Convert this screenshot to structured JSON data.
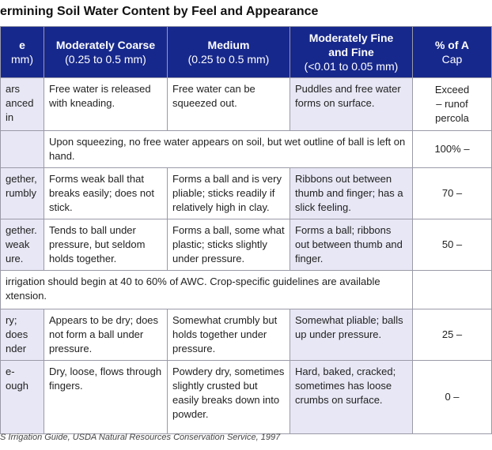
{
  "title": "ermining Soil Water Content by Feel and Appearance",
  "table": {
    "header": [
      {
        "name": "e",
        "range": "mm)"
      },
      {
        "name": "Moderately Coarse",
        "range": "(0.25 to 0.5 mm)"
      },
      {
        "name": "Medium",
        "range": "(0.25 to 0.5 mm)"
      },
      {
        "name": "Moderately Fine\nand Fine",
        "range": "(<0.01 to 0.05 mm)"
      },
      {
        "name": "% of A",
        "range": "Cap"
      }
    ],
    "rows": [
      [
        "ars\nanced in",
        "Free water is released with kneading.",
        "Free water can be squeezed out.",
        "Puddles and free water forms on surface.",
        "Exceed\n– runof\npercola"
      ],
      [
        "Upon squeezing, no free water appears on soil, but wet outline of ball is left on hand.",
        "100% –"
      ],
      [
        "gether,\nrumbly",
        "Forms weak ball that breaks easily; does not stick.",
        "Forms a ball and is very pliable; sticks readily if relatively high in clay.",
        "Ribbons out between thumb and finger; has a slick feeling.",
        "70 –"
      ],
      [
        "gether.\nweak\nure.",
        "Tends to ball under pressure, but seldom holds together.",
        "Forms a ball, some what plastic; sticks slightly under pressure.",
        "Forms a ball; ribbons out between thumb and finger.",
        "50 –"
      ],
      [
        "irrigation should begin at 40 to 60% of AWC. Crop-specific guidelines are available\nxtension."
      ],
      [
        "ry; does\nnder",
        "Appears to be dry; does not form a ball under pressure.",
        "Somewhat crumbly but holds together under pressure.",
        "Somewhat pliable; balls up under pressure.",
        "25 –"
      ],
      [
        "e-\nough",
        "Dry, loose, flows through fingers.",
        "Powdery dry, sometimes slightly crusted but easily breaks down into powder.",
        "Hard, baked, cracked; sometimes has loose crumbs on surface.",
        "0 –"
      ]
    ]
  },
  "source": "S Irrigation Guide, USDA Natural Resources Conservation Service, 1997"
}
